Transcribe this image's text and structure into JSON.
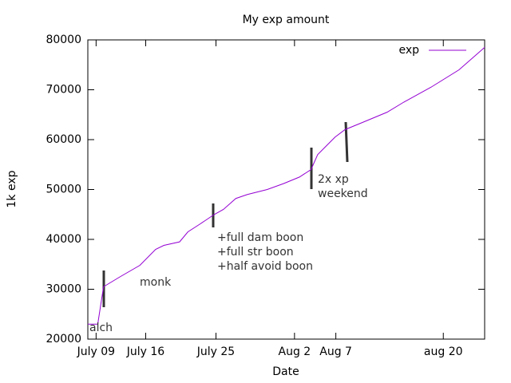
{
  "chart_data": {
    "type": "line",
    "title": "My exp amount",
    "x_label": "Date",
    "y_label": "1k exp",
    "x": [
      0,
      1.2,
      1.9,
      3.9,
      6.3,
      8.2,
      9.2,
      11.1,
      12.1,
      13.5,
      15.3,
      16.4,
      17.9,
      19.3,
      21.7,
      23.7,
      25.6,
      27,
      27.8,
      29,
      29.9,
      31.1,
      33.3,
      36.2,
      38.2,
      41.5,
      44.9,
      48
    ],
    "series": [
      {
        "name": "exp",
        "color": "#9400d3",
        "values": [
          23000,
          23000,
          30500,
          32500,
          34800,
          38000,
          38800,
          39500,
          41500,
          43000,
          45000,
          46000,
          48200,
          49000,
          50000,
          51200,
          52500,
          54000,
          57000,
          59000,
          60500,
          62000,
          63500,
          65500,
          67500,
          70500,
          74000,
          78500
        ]
      }
    ],
    "xlim": [
      0,
      48
    ],
    "ylim": [
      20000,
      80000
    ],
    "xticks": [
      {
        "value": 1,
        "label": "July 09"
      },
      {
        "value": 7,
        "label": "July 16"
      },
      {
        "value": 15.5,
        "label": "July 25"
      },
      {
        "value": 25,
        "label": "Aug 2"
      },
      {
        "value": 30,
        "label": "Aug 7"
      },
      {
        "value": 43,
        "label": "aug 20"
      }
    ],
    "yticks": [
      20000,
      30000,
      40000,
      50000,
      60000,
      70000,
      80000
    ],
    "legend": "top-right",
    "annotations": [
      [
        "alch"
      ],
      [
        "monk"
      ],
      [
        "+full dam boon",
        "+full str boon",
        "+half avoid boon"
      ],
      [
        "2x xp",
        "weekend"
      ]
    ]
  }
}
